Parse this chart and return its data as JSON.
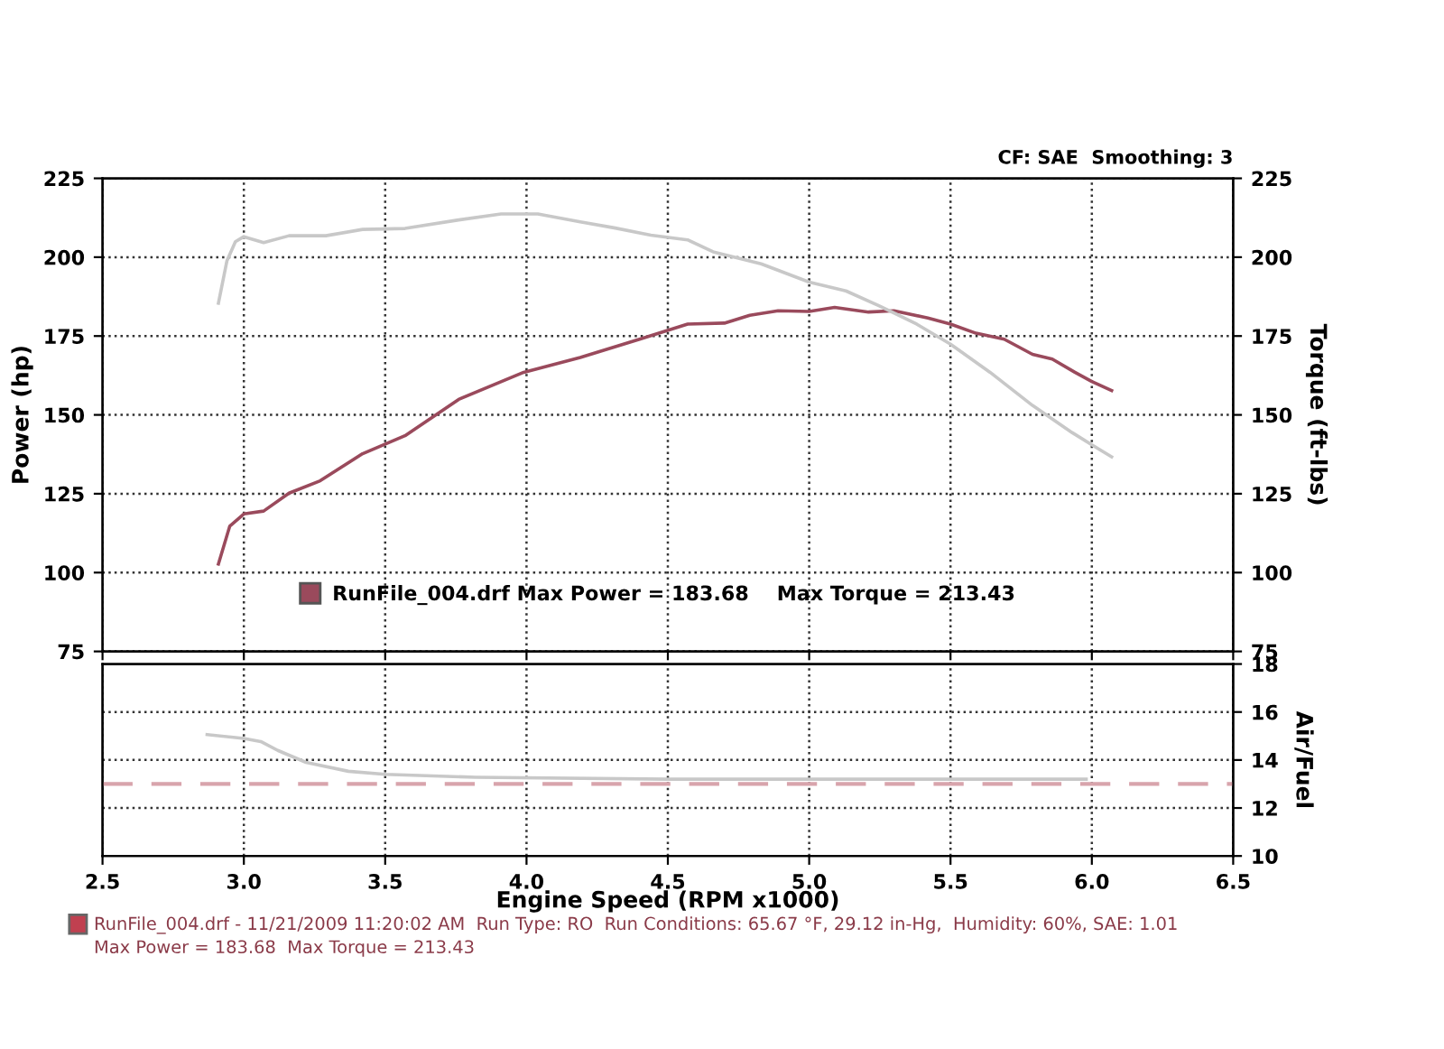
{
  "chart_data": [
    {
      "type": "line",
      "xlim": [
        2.5,
        6.5
      ],
      "xticks": [
        2.5,
        3.0,
        3.5,
        4.0,
        4.5,
        5.0,
        5.5,
        6.0,
        6.5
      ],
      "ylim": [
        75,
        225
      ],
      "yticks": [
        75,
        100,
        125,
        150,
        175,
        200,
        225
      ],
      "y2lim": [
        75,
        225
      ],
      "y2ticks": [
        75,
        100,
        125,
        150,
        175,
        200,
        225
      ],
      "ylabel": "Power (hp)",
      "y2label": "Torque (ft-lbs)",
      "grid": true,
      "tick_labels": "y",
      "legend": "bottom left",
      "line_style": "solid",
      "annotations": [
        "CF: SAE  Smoothing: 3"
      ],
      "series": [
        {
          "name": "RunFile_004.drf Max Power = 183.68    Max Torque = 213.43",
          "color": "#9a4a5c",
          "axis": "y",
          "x": [
            2.91,
            2.95,
            3.0,
            3.07,
            3.16,
            3.27,
            3.42,
            3.57,
            3.76,
            3.99,
            4.19,
            4.4,
            4.57,
            4.7,
            4.79,
            4.89,
            5.0,
            5.09,
            5.21,
            5.3,
            5.42,
            5.5,
            5.59,
            5.69,
            5.79,
            5.86,
            5.94,
            6.0,
            6.07
          ],
          "values": [
            102.7,
            114.7,
            118.6,
            119.5,
            125.2,
            129.1,
            137.7,
            143.4,
            154.9,
            163.5,
            168.2,
            174.0,
            178.8,
            179.1,
            181.6,
            183.0,
            182.8,
            184.1,
            182.6,
            183.0,
            180.7,
            178.8,
            175.9,
            174.0,
            169.2,
            167.7,
            163.5,
            160.6,
            157.7
          ]
        },
        {
          "color": "#c8c8c8",
          "axis": "y2",
          "x": [
            2.91,
            2.94,
            2.97,
            3.0,
            3.07,
            3.16,
            3.29,
            3.42,
            3.57,
            3.76,
            3.91,
            4.04,
            4.19,
            4.31,
            4.44,
            4.57,
            4.66,
            4.83,
            5.0,
            5.13,
            5.25,
            5.38,
            5.5,
            5.64,
            5.79,
            5.93,
            6.0,
            6.07
          ],
          "values": [
            185.4,
            198.8,
            204.9,
            206.5,
            204.6,
            206.8,
            206.8,
            208.8,
            209.1,
            211.8,
            213.7,
            213.7,
            211.2,
            209.3,
            207.0,
            205.5,
            201.7,
            197.9,
            192.1,
            189.3,
            184.5,
            178.8,
            172.4,
            163.5,
            153.0,
            144.4,
            140.5,
            136.7
          ]
        }
      ]
    },
    {
      "type": "line",
      "xlim": [
        2.5,
        6.5
      ],
      "xticks": [
        2.5,
        {
          "value": 3,
          "label": "3.0"
        },
        3.5,
        {
          "value": 4,
          "label": "4.0"
        },
        4.5,
        {
          "value": 5,
          "label": "5.0"
        },
        5.5,
        {
          "value": 6,
          "label": "6.0"
        },
        6.5
      ],
      "y2lim": [
        10,
        18
      ],
      "y2ticks": [
        10,
        12,
        14,
        16,
        18
      ],
      "xlabel": "Engine Speed (RPM x1000)",
      "y2label": "Air/Fuel",
      "grid": true,
      "line_style": "solid",
      "ref_lines": [
        {
          "axis": "y2",
          "value": 13,
          "color": "#d8a4ac",
          "line_style": "dashed"
        }
      ],
      "annotations": [
        "RunFile_004.drf - 11/21/2009 11:20:02 AM  Run Type: RO  Run Conditions: 65.67 °F, 29.12 in-Hg,  Humidity: 60%, SAE: 1.01",
        "Max Power = 183.68  Max Torque = 213.43"
      ],
      "series": [
        {
          "color": "#c8c8c8",
          "axis": "y2",
          "x": [
            2.87,
            3.0,
            3.06,
            3.12,
            3.22,
            3.37,
            3.5,
            3.82,
            4.5,
            5.0,
            5.5,
            5.98
          ],
          "values": [
            15.06,
            14.9,
            14.77,
            14.4,
            13.9,
            13.53,
            13.4,
            13.28,
            13.2,
            13.2,
            13.2,
            13.2
          ]
        }
      ]
    }
  ]
}
